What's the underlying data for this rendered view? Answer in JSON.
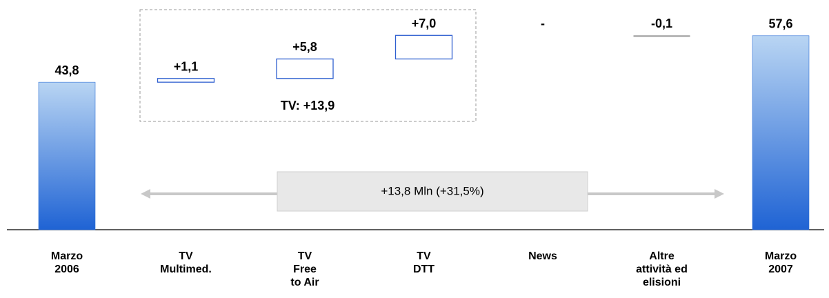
{
  "chart_data": {
    "type": "waterfall",
    "categories": [
      "Marzo\n2006",
      "TV\nMultimed.",
      "TV\nFree\nto Air",
      "TV\nDTT",
      "News",
      "Altre\nattività ed\nelisioni",
      "Marzo\n2007"
    ],
    "values": [
      43.8,
      1.1,
      5.8,
      7.0,
      0,
      -0.1,
      57.6
    ],
    "value_labels": [
      "43,8",
      "+1,1",
      "+5,8",
      "+7,0",
      "-",
      "-0,1",
      "57,6"
    ],
    "ylim": [
      0,
      68
    ],
    "colors": {
      "total": "#2e6fd6",
      "increase": "#2e5fd0",
      "decrease": "#999999"
    },
    "annotations": {
      "group_total": "TV: +13,9",
      "change": "+13,8 Mln (+31,5%)"
    }
  }
}
